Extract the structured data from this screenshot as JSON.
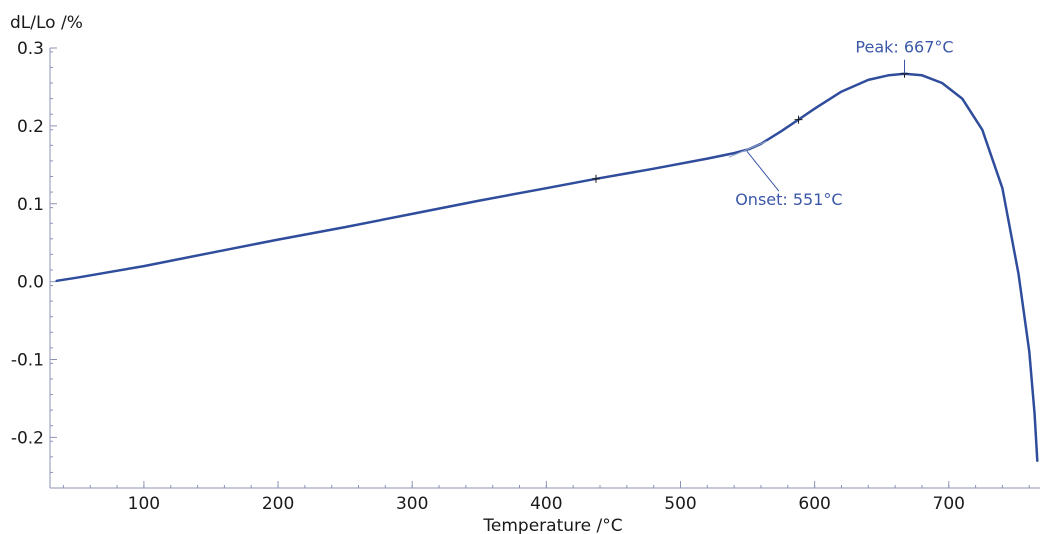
{
  "chart_data": {
    "type": "line",
    "ylabel": "dL/Lo /%",
    "xlabel": "Temperature /°C",
    "xlim": [
      30,
      768
    ],
    "ylim": [
      -0.265,
      0.3
    ],
    "x_ticks": [
      100,
      200,
      300,
      400,
      500,
      600,
      700
    ],
    "y_ticks": [
      0.3,
      0.2,
      0.1,
      0.0,
      -0.1,
      -0.2
    ],
    "y_tick_labels": [
      "0.3",
      "0.2",
      "0.1",
      "0.0",
      "-0.1",
      "-0.2"
    ],
    "grid": false,
    "line_color": "#2f4d9c",
    "annotation_color": "#3b58a8",
    "series": [
      {
        "x": [
          35,
          50,
          100,
          150,
          200,
          250,
          300,
          350,
          400,
          437,
          480,
          520,
          540,
          551,
          560,
          575,
          588,
          600,
          620,
          640,
          655,
          667,
          680,
          695,
          710,
          725,
          740,
          752,
          760,
          764,
          766
        ],
        "y": [
          0.001,
          0.005,
          0.02,
          0.037,
          0.054,
          0.07,
          0.087,
          0.104,
          0.12,
          0.132,
          0.145,
          0.158,
          0.165,
          0.17,
          0.177,
          0.193,
          0.208,
          0.222,
          0.244,
          0.259,
          0.265,
          0.267,
          0.265,
          0.255,
          0.235,
          0.195,
          0.12,
          0.01,
          -0.09,
          -0.17,
          -0.23
        ]
      }
    ],
    "markers": [
      {
        "x": 437,
        "y": 0.132
      },
      {
        "x": 588,
        "y": 0.208
      },
      {
        "x": 667,
        "y": 0.267
      }
    ],
    "annotations": [
      {
        "label": "Peak: 667°C",
        "x": 667,
        "y": 0.267
      },
      {
        "label": "Onset: 551°C",
        "x": 551,
        "y": 0.17
      }
    ]
  }
}
